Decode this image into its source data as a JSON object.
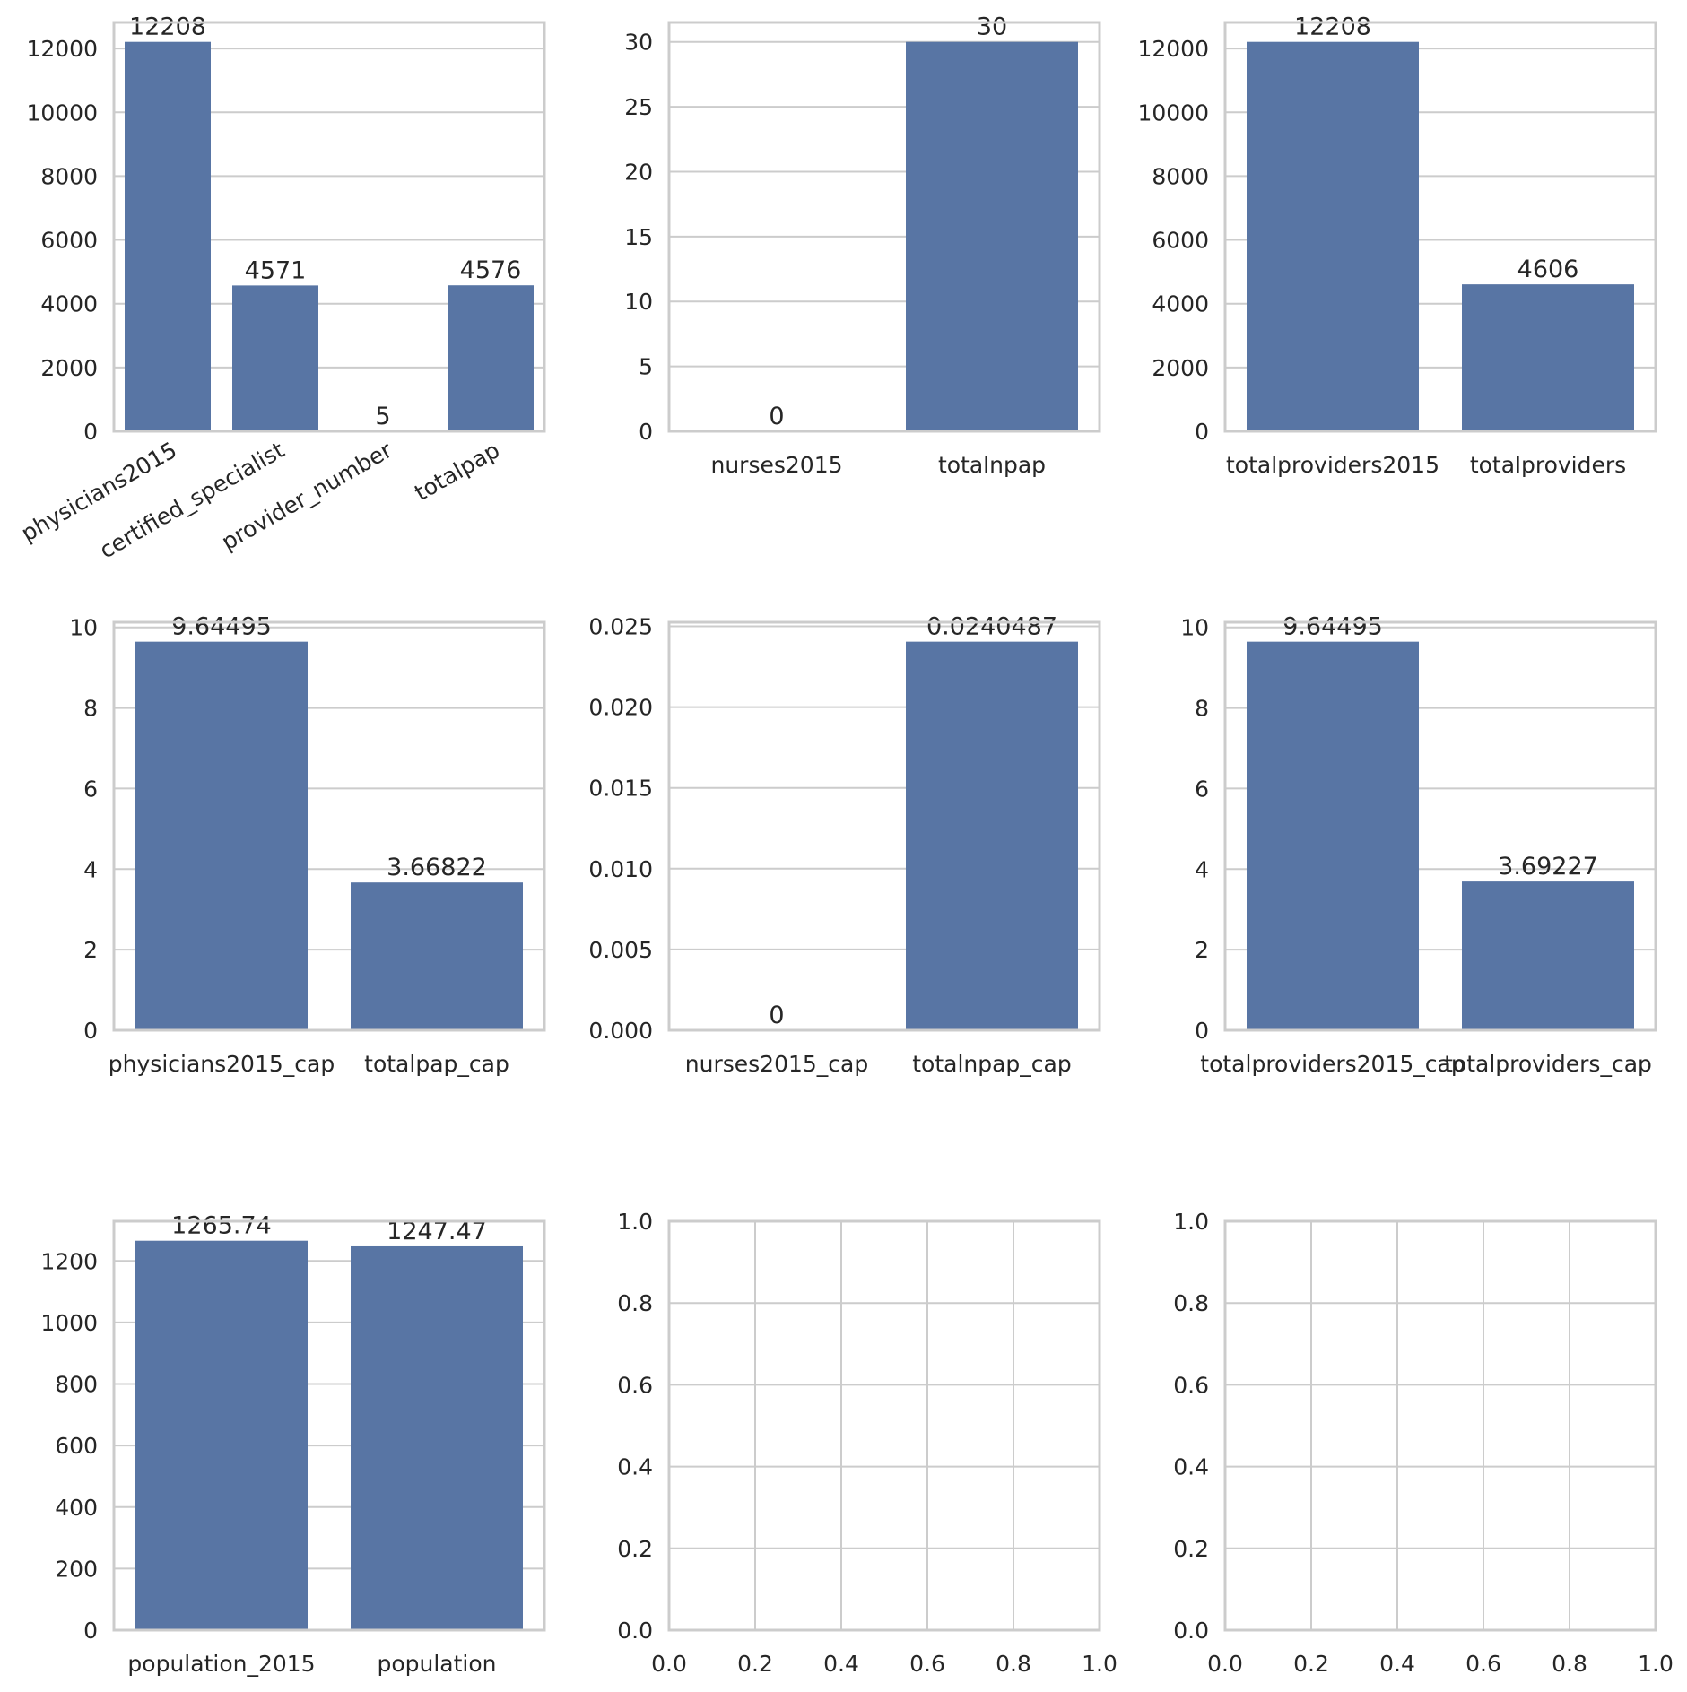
{
  "figure": {
    "bar_color": "#5875a4",
    "grid_color": "#cccccc",
    "text_color": "#262626"
  },
  "chart_data": [
    {
      "type": "bar",
      "categories": [
        "physicians2015",
        "certified_specialist",
        "provider_number",
        "totalpap"
      ],
      "values": [
        12208,
        4571,
        5,
        4576
      ],
      "data_labels": [
        "12208",
        "4571",
        "5",
        "4576"
      ],
      "yticks": [
        0,
        2000,
        4000,
        6000,
        8000,
        10000,
        12000
      ],
      "ytick_labels": [
        "0",
        "2000",
        "4000",
        "6000",
        "8000",
        "10000",
        "12000"
      ],
      "ylim": [
        0,
        12818
      ],
      "xtick_rotation": 30,
      "grid": true
    },
    {
      "type": "bar",
      "categories": [
        "nurses2015",
        "totalnpap"
      ],
      "values": [
        0,
        30
      ],
      "data_labels": [
        "0",
        "30"
      ],
      "yticks": [
        0,
        5,
        10,
        15,
        20,
        25,
        30
      ],
      "ytick_labels": [
        "0",
        "5",
        "10",
        "15",
        "20",
        "25",
        "30"
      ],
      "ylim": [
        0,
        31.5
      ],
      "grid": true
    },
    {
      "type": "bar",
      "categories": [
        "totalproviders2015",
        "totalproviders"
      ],
      "values": [
        12208,
        4606
      ],
      "data_labels": [
        "12208",
        "4606"
      ],
      "yticks": [
        0,
        2000,
        4000,
        6000,
        8000,
        10000,
        12000
      ],
      "ytick_labels": [
        "0",
        "2000",
        "4000",
        "6000",
        "8000",
        "10000",
        "12000"
      ],
      "ylim": [
        0,
        12818
      ],
      "grid": true
    },
    {
      "type": "bar",
      "categories": [
        "physicians2015_cap",
        "totalpap_cap"
      ],
      "values": [
        9.64495,
        3.66822
      ],
      "data_labels": [
        "9.64495",
        "3.66822"
      ],
      "yticks": [
        0,
        2,
        4,
        6,
        8,
        10
      ],
      "ytick_labels": [
        "0",
        "2",
        "4",
        "6",
        "8",
        "10"
      ],
      "ylim": [
        0,
        10.127
      ],
      "grid": true
    },
    {
      "type": "bar",
      "categories": [
        "nurses2015_cap",
        "totalnpap_cap"
      ],
      "values": [
        0,
        0.0240487
      ],
      "data_labels": [
        "0",
        "0.0240487"
      ],
      "yticks": [
        0,
        0.005,
        0.01,
        0.015,
        0.02,
        0.025
      ],
      "ytick_labels": [
        "0.000",
        "0.005",
        "0.010",
        "0.015",
        "0.020",
        "0.025"
      ],
      "ylim": [
        0,
        0.02525
      ],
      "grid": true
    },
    {
      "type": "bar",
      "categories": [
        "totalproviders2015_cap",
        "totalproviders_cap"
      ],
      "values": [
        9.64495,
        3.69227
      ],
      "data_labels": [
        "9.64495",
        "3.69227"
      ],
      "yticks": [
        0,
        2,
        4,
        6,
        8,
        10
      ],
      "ytick_labels": [
        "0",
        "2",
        "4",
        "6",
        "8",
        "10"
      ],
      "ylim": [
        0,
        10.127
      ],
      "grid": true
    },
    {
      "type": "bar",
      "categories": [
        "population_2015",
        "population"
      ],
      "values": [
        1265.74,
        1247.47
      ],
      "data_labels": [
        "1265.74",
        "1247.47"
      ],
      "yticks": [
        0,
        200,
        400,
        600,
        800,
        1000,
        1200
      ],
      "ytick_labels": [
        "0",
        "200",
        "400",
        "600",
        "800",
        "1000",
        "1200"
      ],
      "ylim": [
        0,
        1329
      ],
      "grid": true
    },
    {
      "type": "empty",
      "categories": [],
      "values": [],
      "data_labels": [],
      "xlim": [
        0,
        1
      ],
      "ylim": [
        0,
        1
      ],
      "xticks": [
        0,
        0.2,
        0.4,
        0.6,
        0.8,
        1.0
      ],
      "xtick_labels": [
        "0.0",
        "0.2",
        "0.4",
        "0.6",
        "0.8",
        "1.0"
      ],
      "yticks": [
        0,
        0.2,
        0.4,
        0.6,
        0.8,
        1.0
      ],
      "ytick_labels": [
        "0.0",
        "0.2",
        "0.4",
        "0.6",
        "0.8",
        "1.0"
      ],
      "grid": true
    },
    {
      "type": "empty",
      "categories": [],
      "values": [],
      "data_labels": [],
      "xlim": [
        0,
        1
      ],
      "ylim": [
        0,
        1
      ],
      "xticks": [
        0,
        0.2,
        0.4,
        0.6,
        0.8,
        1.0
      ],
      "xtick_labels": [
        "0.0",
        "0.2",
        "0.4",
        "0.6",
        "0.8",
        "1.0"
      ],
      "yticks": [
        0,
        0.2,
        0.4,
        0.6,
        0.8,
        1.0
      ],
      "ytick_labels": [
        "0.0",
        "0.2",
        "0.4",
        "0.6",
        "0.8",
        "1.0"
      ],
      "grid": true
    }
  ]
}
